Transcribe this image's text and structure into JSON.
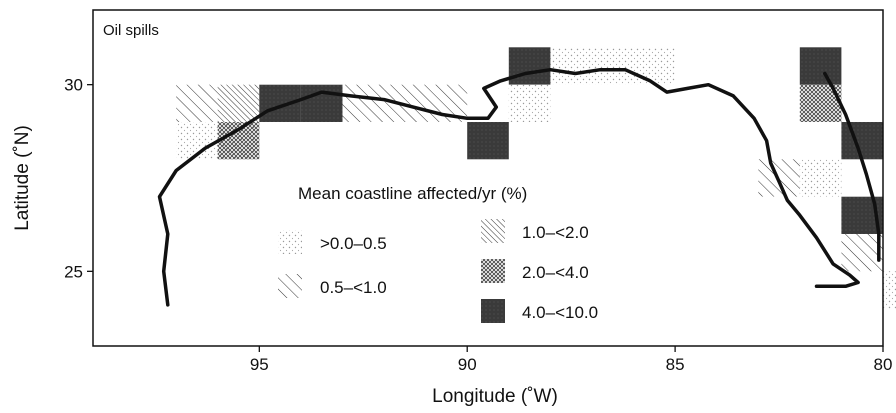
{
  "chart_data": {
    "type": "map",
    "title": "Oil spills",
    "xlabel": "Longitude (˚W)",
    "ylabel": "Latitude (˚N)",
    "xlim": [
      99,
      80
    ],
    "ylim": [
      23,
      32
    ],
    "x_ticks": [
      {
        "value": 95,
        "label": "95"
      },
      {
        "value": 90,
        "label": "90"
      },
      {
        "value": 85,
        "label": "85"
      },
      {
        "value": 80,
        "label": "80"
      }
    ],
    "y_ticks": [
      {
        "value": 30,
        "label": "30"
      },
      {
        "value": 25,
        "label": "25"
      }
    ],
    "legend_title": "Mean coastline affected/yr (%)",
    "legend": [
      {
        "key": "dots",
        "label": ">0.0–0.5",
        "pattern": "sparse dots"
      },
      {
        "key": "hatch",
        "label": "0.5–<1.0",
        "pattern": "diagonal hatch"
      },
      {
        "key": "dense-hatch",
        "label": "1.0–<2.0",
        "pattern": "dense diagonal hatch"
      },
      {
        "key": "cross",
        "label": "2.0–<4.0",
        "pattern": "cross hatch"
      },
      {
        "key": "solid",
        "label": "4.0–<10.0",
        "pattern": "dark fill"
      }
    ],
    "cells": [
      {
        "lon": 97,
        "lat": 28,
        "class": "dots"
      },
      {
        "lon": 96,
        "lat": 28,
        "class": "dots"
      },
      {
        "lon": 97,
        "lat": 29,
        "class": "hatch"
      },
      {
        "lon": 96,
        "lat": 29,
        "class": "dense-hatch"
      },
      {
        "lon": 96,
        "lat": 28,
        "class": "cross"
      },
      {
        "lon": 95,
        "lat": 29,
        "class": "solid"
      },
      {
        "lon": 94,
        "lat": 29,
        "class": "solid"
      },
      {
        "lon": 93,
        "lat": 29,
        "class": "hatch"
      },
      {
        "lon": 92,
        "lat": 29,
        "class": "hatch"
      },
      {
        "lon": 91,
        "lat": 29,
        "class": "hatch"
      },
      {
        "lon": 90,
        "lat": 28,
        "class": "solid"
      },
      {
        "lon": 89,
        "lat": 29,
        "class": "dots"
      },
      {
        "lon": 89,
        "lat": 30,
        "class": "solid"
      },
      {
        "lon": 88,
        "lat": 30,
        "class": "dots"
      },
      {
        "lon": 87,
        "lat": 30,
        "class": "dots"
      },
      {
        "lon": 86,
        "lat": 30,
        "class": "dots"
      },
      {
        "lon": 83,
        "lat": 27,
        "class": "hatch"
      },
      {
        "lon": 82,
        "lat": 27,
        "class": "dots"
      },
      {
        "lon": 82,
        "lat": 30,
        "class": "solid"
      },
      {
        "lon": 82,
        "lat": 29,
        "class": "cross"
      },
      {
        "lon": 81,
        "lat": 28,
        "class": "solid"
      },
      {
        "lon": 81,
        "lat": 26,
        "class": "solid"
      },
      {
        "lon": 81,
        "lat": 25,
        "class": "hatch"
      },
      {
        "lon": 80,
        "lat": 24,
        "class": "dots"
      }
    ],
    "coastline": [
      [
        97.2,
        24.1
      ],
      [
        97.3,
        25.0
      ],
      [
        97.2,
        26.0
      ],
      [
        97.4,
        27.0
      ],
      [
        97.0,
        27.7
      ],
      [
        96.3,
        28.3
      ],
      [
        95.5,
        28.8
      ],
      [
        94.8,
        29.3
      ],
      [
        94.0,
        29.6
      ],
      [
        93.5,
        29.8
      ],
      [
        92.8,
        29.7
      ],
      [
        92.0,
        29.6
      ],
      [
        91.3,
        29.4
      ],
      [
        90.6,
        29.2
      ],
      [
        90.0,
        29.1
      ],
      [
        89.5,
        29.1
      ],
      [
        89.3,
        29.4
      ],
      [
        89.6,
        29.9
      ],
      [
        89.2,
        30.1
      ],
      [
        88.6,
        30.3
      ],
      [
        88.0,
        30.4
      ],
      [
        87.4,
        30.3
      ],
      [
        86.8,
        30.4
      ],
      [
        86.2,
        30.4
      ],
      [
        85.6,
        30.1
      ],
      [
        85.2,
        29.8
      ],
      [
        84.7,
        29.9
      ],
      [
        84.2,
        30.0
      ],
      [
        83.6,
        29.7
      ],
      [
        83.1,
        29.1
      ],
      [
        82.8,
        28.5
      ],
      [
        82.7,
        27.9
      ],
      [
        82.5,
        27.4
      ],
      [
        82.3,
        26.9
      ],
      [
        82.0,
        26.5
      ],
      [
        81.6,
        25.9
      ],
      [
        81.2,
        25.2
      ],
      [
        80.8,
        24.9
      ],
      [
        80.6,
        24.7
      ],
      [
        80.9,
        24.6
      ],
      [
        81.6,
        24.6
      ]
    ],
    "coastline_east": [
      [
        80.1,
        25.3
      ],
      [
        80.1,
        26.0
      ],
      [
        80.2,
        26.8
      ],
      [
        80.4,
        27.6
      ],
      [
        80.6,
        28.3
      ],
      [
        80.9,
        29.2
      ],
      [
        81.2,
        29.9
      ],
      [
        81.4,
        30.3
      ]
    ],
    "colors": {
      "frame": "#111111",
      "coast": "#111111",
      "cell_dark": "#3a3a3a",
      "hatch": "#333333"
    }
  }
}
